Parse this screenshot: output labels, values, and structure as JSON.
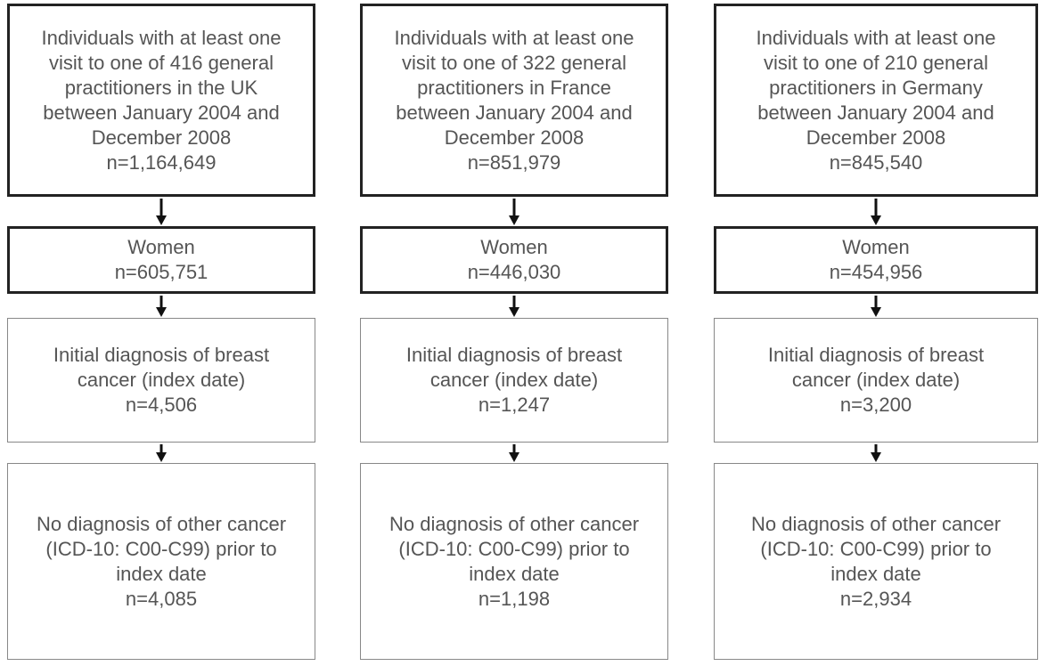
{
  "columns": [
    {
      "boxes": [
        {
          "lines": [
            "Individuals with at least one",
            "visit to one of 416 general",
            "practitioners in the UK",
            "between January 2004 and",
            "December 2008",
            "n=1,164,649"
          ]
        },
        {
          "lines": [
            "Women",
            "n=605,751"
          ]
        },
        {
          "lines": [
            "Initial diagnosis of breast",
            "cancer (index date)",
            "n=4,506"
          ]
        },
        {
          "lines": [
            "No diagnosis of other cancer",
            "(ICD-10: C00-C99) prior to",
            "index date",
            "n=4,085"
          ]
        }
      ]
    },
    {
      "boxes": [
        {
          "lines": [
            "Individuals with at least one",
            "visit to one of 322 general",
            "practitioners in France",
            "between January 2004 and",
            "December 2008",
            "n=851,979"
          ]
        },
        {
          "lines": [
            "Women",
            "n=446,030"
          ]
        },
        {
          "lines": [
            "Initial diagnosis of breast",
            "cancer (index date)",
            "n=1,247"
          ]
        },
        {
          "lines": [
            "No diagnosis of other cancer",
            "(ICD-10: C00-C99) prior to",
            "index date",
            "n=1,198"
          ]
        }
      ]
    },
    {
      "boxes": [
        {
          "lines": [
            "Individuals with at least one",
            "visit to one of 210 general",
            "practitioners in Germany",
            "between January 2004 and",
            "December 2008",
            "n=845,540"
          ]
        },
        {
          "lines": [
            "Women",
            "n=454,956"
          ]
        },
        {
          "lines": [
            "Initial diagnosis of breast",
            "cancer (index date)",
            "n=3,200"
          ]
        },
        {
          "lines": [
            "No diagnosis of other cancer",
            "(ICD-10: C00-C99) prior to",
            "index date",
            "n=2,934"
          ]
        }
      ]
    }
  ]
}
